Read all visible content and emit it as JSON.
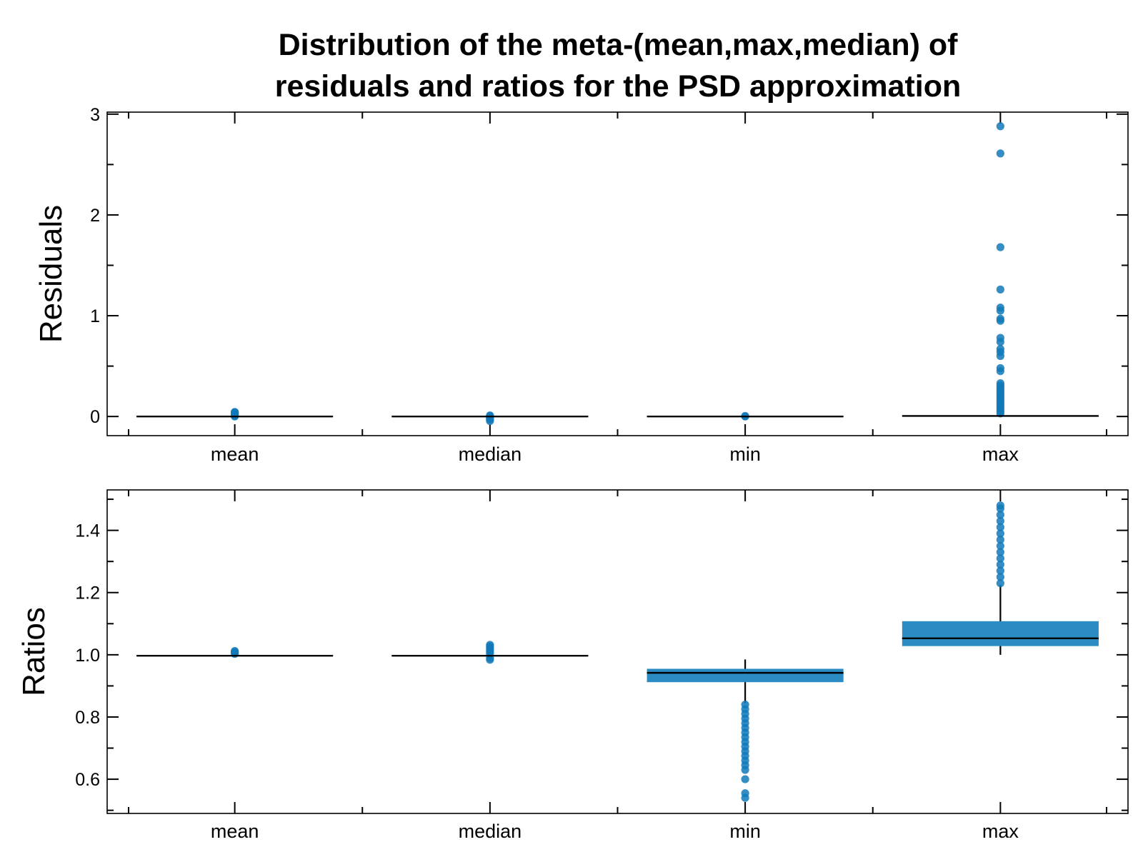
{
  "title_lines": [
    "Distribution of the meta-(mean,max,median) of",
    "residuals and ratios for the PSD approximation"
  ],
  "colors": {
    "box": "#2b8cc4",
    "point": "#1279b8",
    "line": "#000000"
  },
  "chart_data": [
    {
      "type": "box",
      "ylabel": "Residuals",
      "categories": [
        "mean",
        "median",
        "min",
        "max"
      ],
      "ylim": [
        -0.19,
        3.02
      ],
      "yticks": [
        0,
        1,
        2,
        3
      ],
      "ytick_labels": [
        "0",
        "1",
        "2",
        "3"
      ],
      "yminor_step": 0.5,
      "grid": false,
      "boxes": [
        {
          "category": "mean",
          "q1": 0.0,
          "median": 0.0,
          "q3": 0.0,
          "whisker_low": 0.0,
          "whisker_high": 0.0,
          "outliers": [
            0.0,
            0.01,
            0.015,
            0.02,
            0.03,
            0.04,
            0.045
          ]
        },
        {
          "category": "median",
          "q1": 0.0,
          "median": 0.0,
          "q3": 0.0,
          "whisker_low": 0.0,
          "whisker_high": 0.0,
          "outliers": [
            -0.045,
            -0.03,
            -0.02,
            -0.01,
            0.005,
            0.01
          ]
        },
        {
          "category": "min",
          "q1": 0.0,
          "median": 0.0,
          "q3": 0.0,
          "whisker_low": 0.0,
          "whisker_high": 0.0,
          "outliers": [
            0.0,
            0.005
          ]
        },
        {
          "category": "max",
          "q1": 0.0,
          "median": 0.005,
          "q3": 0.01,
          "whisker_low": 0.0,
          "whisker_high": 0.02,
          "outliers": [
            0.03,
            0.05,
            0.07,
            0.09,
            0.11,
            0.13,
            0.15,
            0.17,
            0.19,
            0.21,
            0.23,
            0.25,
            0.27,
            0.29,
            0.31,
            0.33,
            0.45,
            0.48,
            0.6,
            0.64,
            0.67,
            0.74,
            0.78,
            0.95,
            0.97,
            1.05,
            1.08,
            1.26,
            1.68,
            2.61,
            2.88
          ]
        }
      ]
    },
    {
      "type": "box",
      "ylabel": "Ratios",
      "categories": [
        "mean",
        "median",
        "min",
        "max"
      ],
      "ylim": [
        0.49,
        1.53
      ],
      "yticks": [
        0.6,
        0.8,
        1.0,
        1.2,
        1.4
      ],
      "ytick_labels": [
        "0.6",
        "0.8",
        "1.0",
        "1.2",
        "1.4"
      ],
      "yminor_step": 0.1,
      "grid": false,
      "boxes": [
        {
          "category": "mean",
          "q1": 0.996,
          "median": 0.997,
          "q3": 0.998,
          "whisker_low": 0.994,
          "whisker_high": 1.0,
          "outliers": [
            1.003,
            1.006,
            1.009,
            1.012
          ]
        },
        {
          "category": "median",
          "q1": 0.996,
          "median": 0.997,
          "q3": 0.998,
          "whisker_low": 0.994,
          "whisker_high": 0.999,
          "outliers": [
            0.984,
            0.99,
            1.004,
            1.01,
            1.016,
            1.022,
            1.027,
            1.032
          ]
        },
        {
          "category": "min",
          "q1": 0.912,
          "median": 0.942,
          "q3": 0.955,
          "whisker_low": 0.845,
          "whisker_high": 0.985,
          "outliers": [
            0.54,
            0.555,
            0.6,
            0.63,
            0.645,
            0.66,
            0.675,
            0.69,
            0.705,
            0.72,
            0.735,
            0.75,
            0.765,
            0.78,
            0.795,
            0.81,
            0.825,
            0.84
          ]
        },
        {
          "category": "max",
          "q1": 1.028,
          "median": 1.053,
          "q3": 1.108,
          "whisker_low": 1.0,
          "whisker_high": 1.225,
          "outliers": [
            1.23,
            1.25,
            1.27,
            1.29,
            1.31,
            1.33,
            1.35,
            1.37,
            1.39,
            1.41,
            1.43,
            1.45,
            1.47,
            1.48
          ]
        }
      ]
    }
  ]
}
